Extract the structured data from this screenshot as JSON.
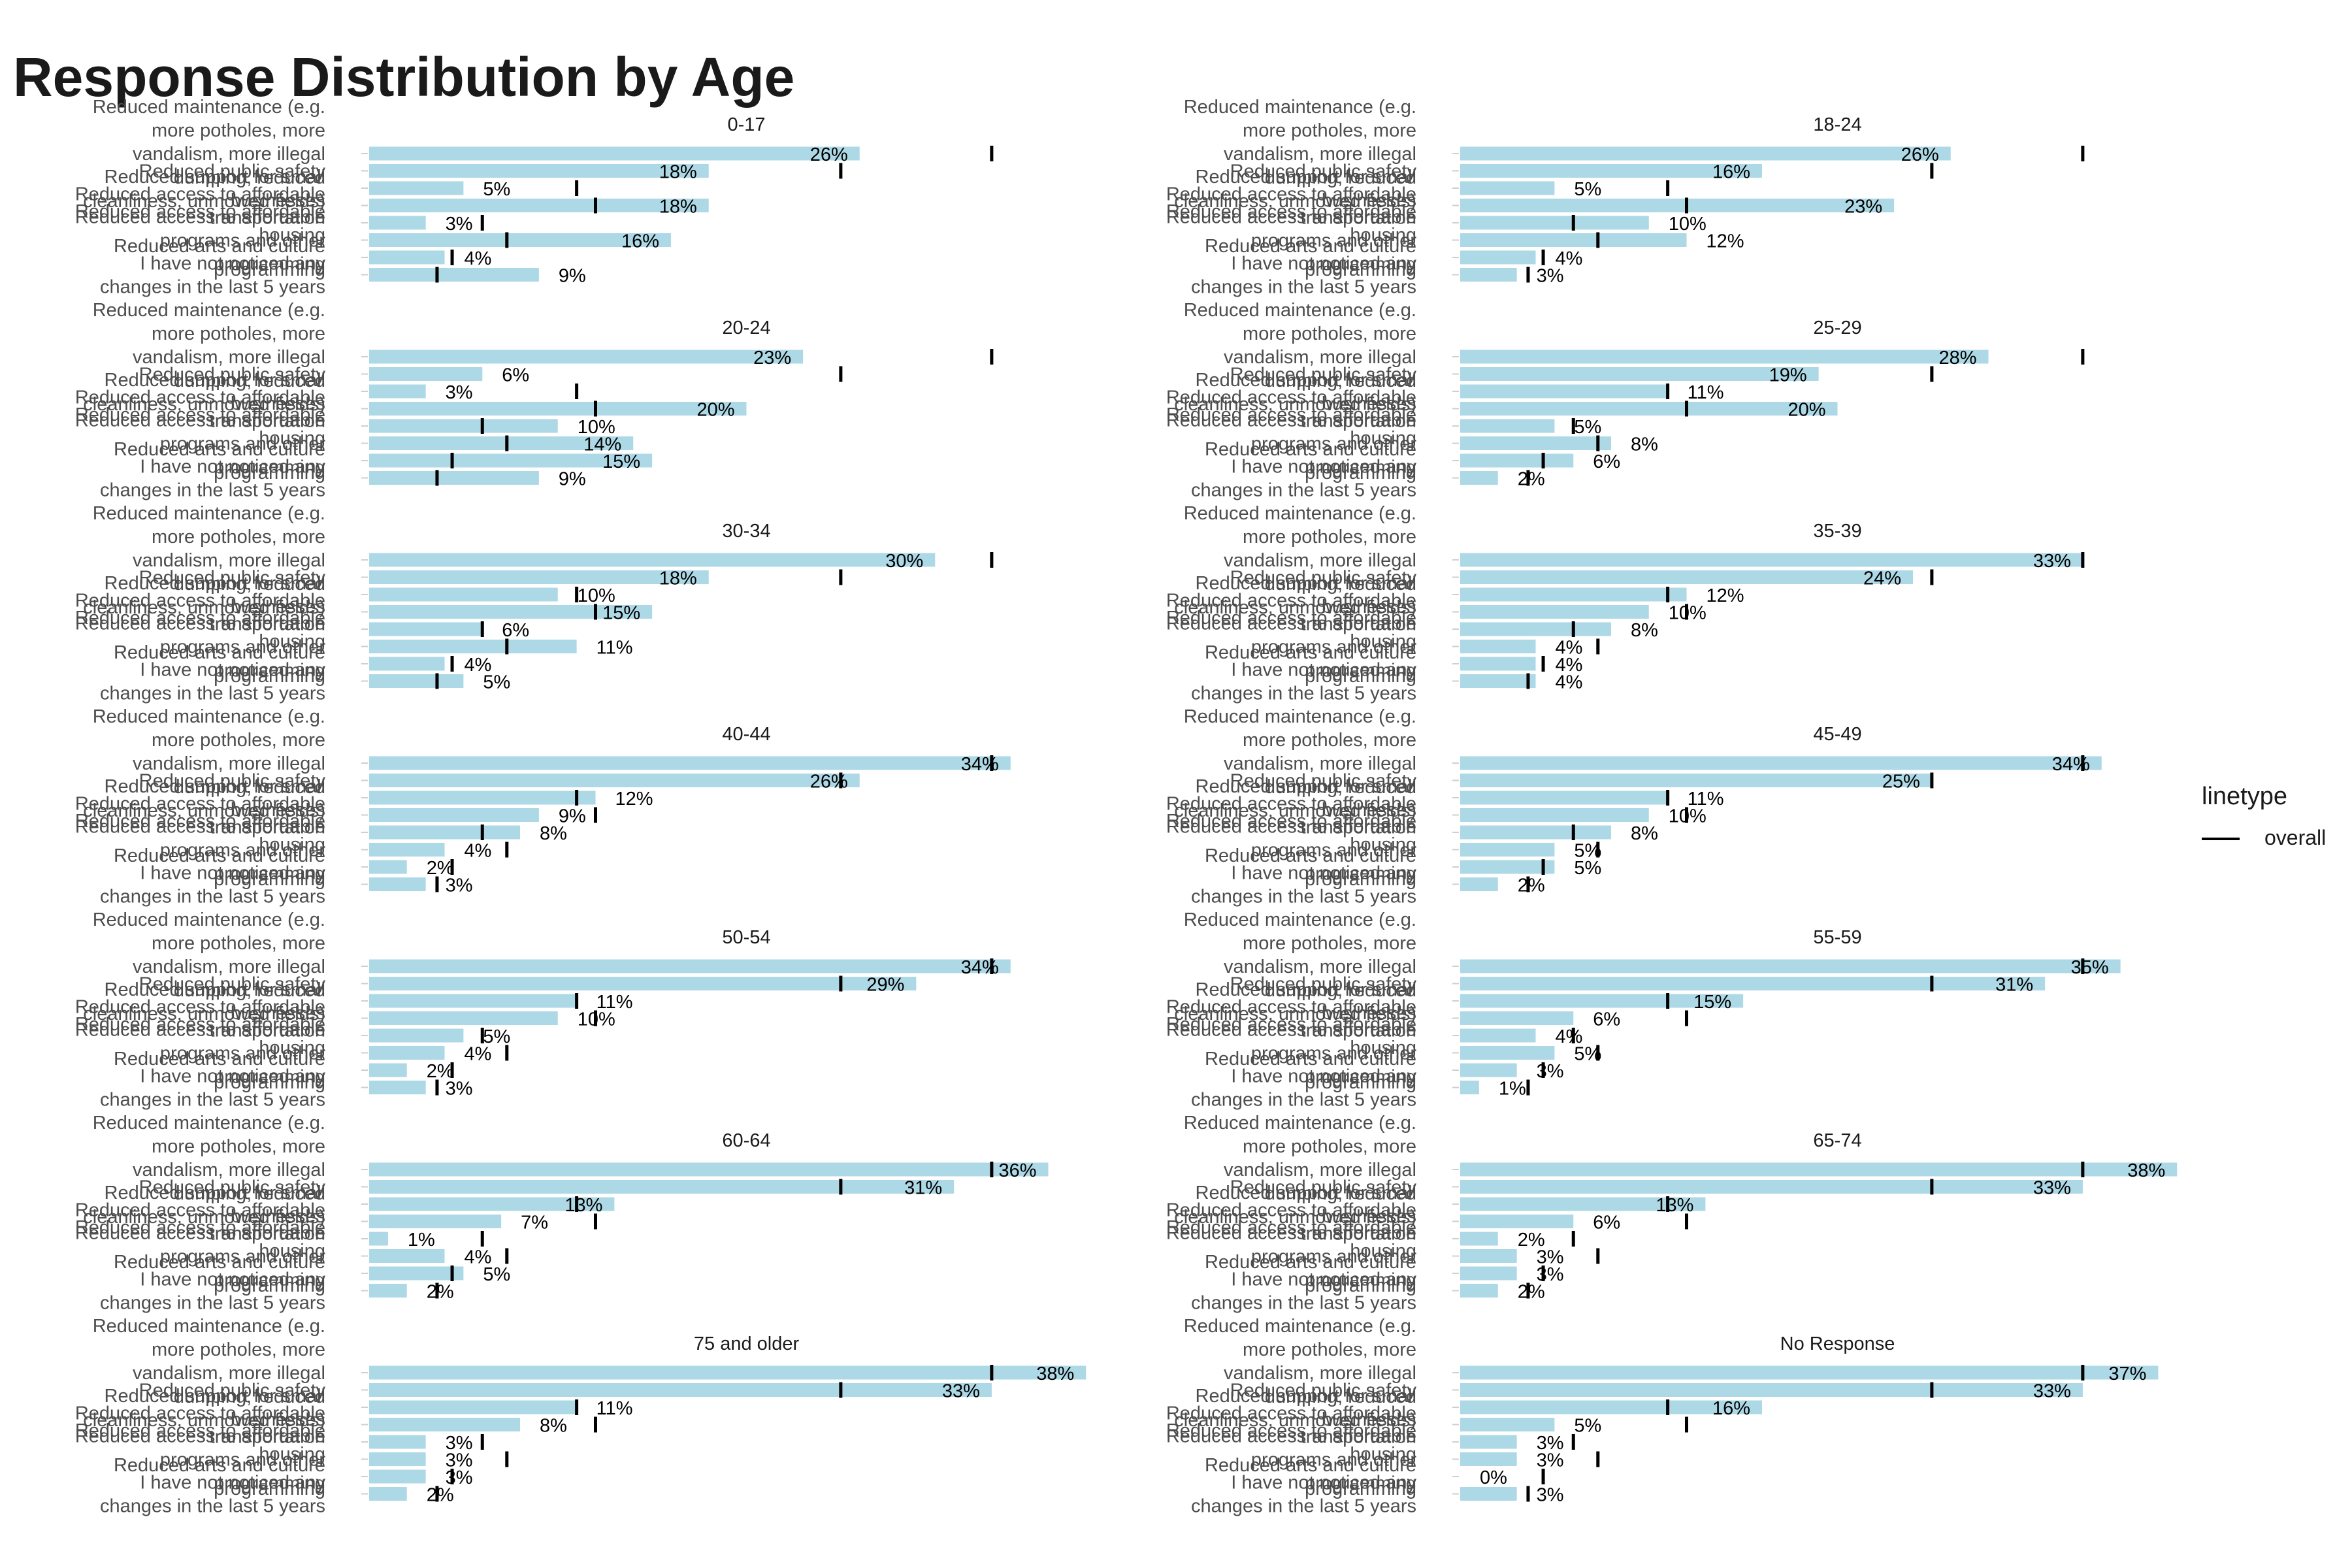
{
  "title": "Response Distribution by Age",
  "legend": {
    "title": "linetype",
    "entries": [
      {
        "label": "overall"
      }
    ]
  },
  "colors": {
    "bar": "#ADD8E6",
    "marker": "#000000",
    "text": "#000000",
    "axis_text": "#4D4D4D"
  },
  "chart_data": {
    "type": "bar",
    "orientation": "horizontal",
    "facet_by": "age",
    "value_format": "percent",
    "xlim": [
      0,
      40
    ],
    "grid": false,
    "legend_position": "right",
    "categories": [
      "Reduced maintenance (e.g. more potholes, more vandalism, more illegal dumping, reduced cleanliness, unmowed fields)",
      "Reduced public safety",
      "Reduced support for small businesses",
      "Reduced access to affordable transportation",
      "Reduced access to affordable housing",
      "Reduced access to affordable programs and other programming",
      "Reduced arts and culture programming",
      "I have not noticed any changes in the last 5 years"
    ],
    "overall": [
      33,
      25,
      11,
      12,
      6,
      7.3,
      4.4,
      3.6
    ],
    "panels": [
      {
        "label": "0-17",
        "values": [
          26,
          18,
          5,
          18,
          3,
          16,
          4,
          9
        ]
      },
      {
        "label": "18-24",
        "values": [
          26,
          16,
          5,
          23,
          10,
          12,
          4,
          3
        ]
      },
      {
        "label": "20-24",
        "values": [
          23,
          6,
          3,
          20,
          10,
          14,
          15,
          9
        ]
      },
      {
        "label": "25-29",
        "values": [
          28,
          19,
          11,
          20,
          5,
          8,
          6,
          2
        ]
      },
      {
        "label": "30-34",
        "values": [
          30,
          18,
          10,
          15,
          6,
          11,
          4,
          5
        ]
      },
      {
        "label": "35-39",
        "values": [
          33,
          24,
          12,
          10,
          8,
          4,
          4,
          4
        ]
      },
      {
        "label": "40-44",
        "values": [
          34,
          26,
          12,
          9,
          8,
          4,
          2,
          3
        ]
      },
      {
        "label": "45-49",
        "values": [
          34,
          25,
          11,
          10,
          8,
          5,
          5,
          2
        ]
      },
      {
        "label": "50-54",
        "values": [
          34,
          29,
          11,
          10,
          5,
          4,
          2,
          3
        ]
      },
      {
        "label": "55-59",
        "values": [
          35,
          31,
          15,
          6,
          4,
          5,
          3,
          1
        ]
      },
      {
        "label": "60-64",
        "values": [
          36,
          31,
          13,
          7,
          1,
          4,
          5,
          2
        ]
      },
      {
        "label": "65-74",
        "values": [
          38,
          33,
          13,
          6,
          2,
          3,
          3,
          2
        ]
      },
      {
        "label": "75 and older",
        "values": [
          38,
          33,
          11,
          8,
          3,
          3,
          3,
          2
        ]
      },
      {
        "label": "No Response",
        "values": [
          37,
          33,
          16,
          5,
          3,
          3,
          0,
          3
        ]
      }
    ]
  }
}
